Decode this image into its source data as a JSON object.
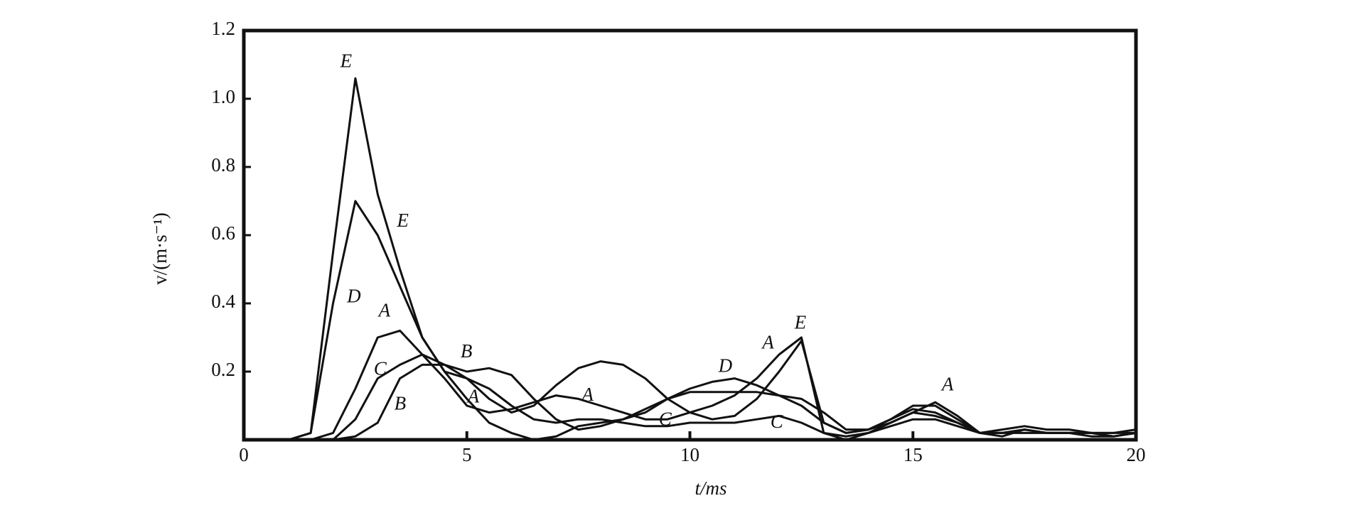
{
  "chart_data": {
    "type": "line",
    "xlabel": "t/ms",
    "ylabel": "v/(m·s⁻¹)",
    "xlim": [
      0,
      20
    ],
    "ylim": [
      0,
      1.2
    ],
    "xticks": [
      0,
      5,
      10,
      15,
      20
    ],
    "yticks": [
      0.2,
      0.4,
      0.6,
      0.8,
      {
        "value": 1,
        "label": "1.0"
      },
      1.2
    ],
    "x": [
      0,
      0.5,
      1,
      1.5,
      2,
      2.5,
      3,
      3.5,
      4,
      4.5,
      5,
      5.5,
      6,
      6.5,
      7,
      7.5,
      8,
      8.5,
      9,
      9.5,
      10,
      10.5,
      11,
      11.5,
      12,
      12.5,
      13,
      13.5,
      14,
      14.5,
      15,
      15.5,
      16,
      16.5,
      17,
      17.5,
      18,
      18.5,
      19,
      19.5,
      20
    ],
    "series": [
      {
        "name": "A",
        "color": "#111111",
        "values": [
          0,
          0,
          0,
          0,
          0.02,
          0.15,
          0.3,
          0.32,
          0.25,
          0.18,
          0.1,
          0.08,
          0.09,
          0.11,
          0.13,
          0.12,
          0.1,
          0.08,
          0.06,
          0.06,
          0.08,
          0.1,
          0.13,
          0.18,
          0.25,
          0.3,
          0.02,
          0,
          0.02,
          0.05,
          0.08,
          0.11,
          0.07,
          0.02,
          0.01,
          0.03,
          0.02,
          0.02,
          0.01,
          0.01,
          0.02
        ]
      },
      {
        "name": "B",
        "color": "#111111",
        "values": [
          0,
          0,
          0,
          0,
          0,
          0.01,
          0.05,
          0.18,
          0.22,
          0.22,
          0.2,
          0.21,
          0.19,
          0.12,
          0.06,
          0.03,
          0.04,
          0.06,
          0.08,
          0.12,
          0.14,
          0.14,
          0.14,
          0.14,
          0.13,
          0.12,
          0.08,
          0.03,
          0.03,
          0.05,
          0.08,
          0.07,
          0.05,
          0.02,
          0.02,
          0.03,
          0.02,
          0.02,
          0.02,
          0.01,
          0.02
        ]
      },
      {
        "name": "C",
        "color": "#111111",
        "values": [
          0,
          0,
          0,
          0,
          0,
          0.06,
          0.18,
          0.22,
          0.25,
          0.22,
          0.18,
          0.15,
          0.1,
          0.06,
          0.05,
          0.06,
          0.06,
          0.05,
          0.04,
          0.04,
          0.05,
          0.05,
          0.05,
          0.06,
          0.07,
          0.05,
          0.02,
          0.01,
          0.02,
          0.04,
          0.06,
          0.06,
          0.04,
          0.02,
          0.02,
          0.02,
          0.02,
          0.02,
          0.02,
          0.02,
          0.02
        ]
      },
      {
        "name": "D",
        "color": "#111111",
        "values": [
          0,
          0,
          0,
          0.02,
          0.4,
          0.7,
          0.6,
          0.45,
          0.3,
          0.2,
          0.12,
          0.05,
          0.02,
          0,
          0.01,
          0.04,
          0.05,
          0.06,
          0.09,
          0.12,
          0.15,
          0.17,
          0.18,
          0.16,
          0.13,
          0.1,
          0.05,
          0.02,
          0.03,
          0.06,
          0.1,
          0.1,
          0.06,
          0.02,
          0.03,
          0.04,
          0.03,
          0.03,
          0.02,
          0.02,
          0.03
        ]
      },
      {
        "name": "E",
        "color": "#111111",
        "values": [
          0,
          0,
          0,
          0.02,
          0.55,
          1.06,
          0.72,
          0.5,
          0.3,
          0.2,
          0.18,
          0.12,
          0.08,
          0.1,
          0.16,
          0.21,
          0.23,
          0.22,
          0.18,
          0.12,
          0.08,
          0.06,
          0.07,
          0.12,
          0.2,
          0.29,
          0.05,
          0.02,
          0.03,
          0.06,
          0.09,
          0.08,
          0.05,
          0.02,
          0.02,
          0.03,
          0.02,
          0.02,
          0.02,
          0.01,
          0.02
        ]
      }
    ]
  }
}
